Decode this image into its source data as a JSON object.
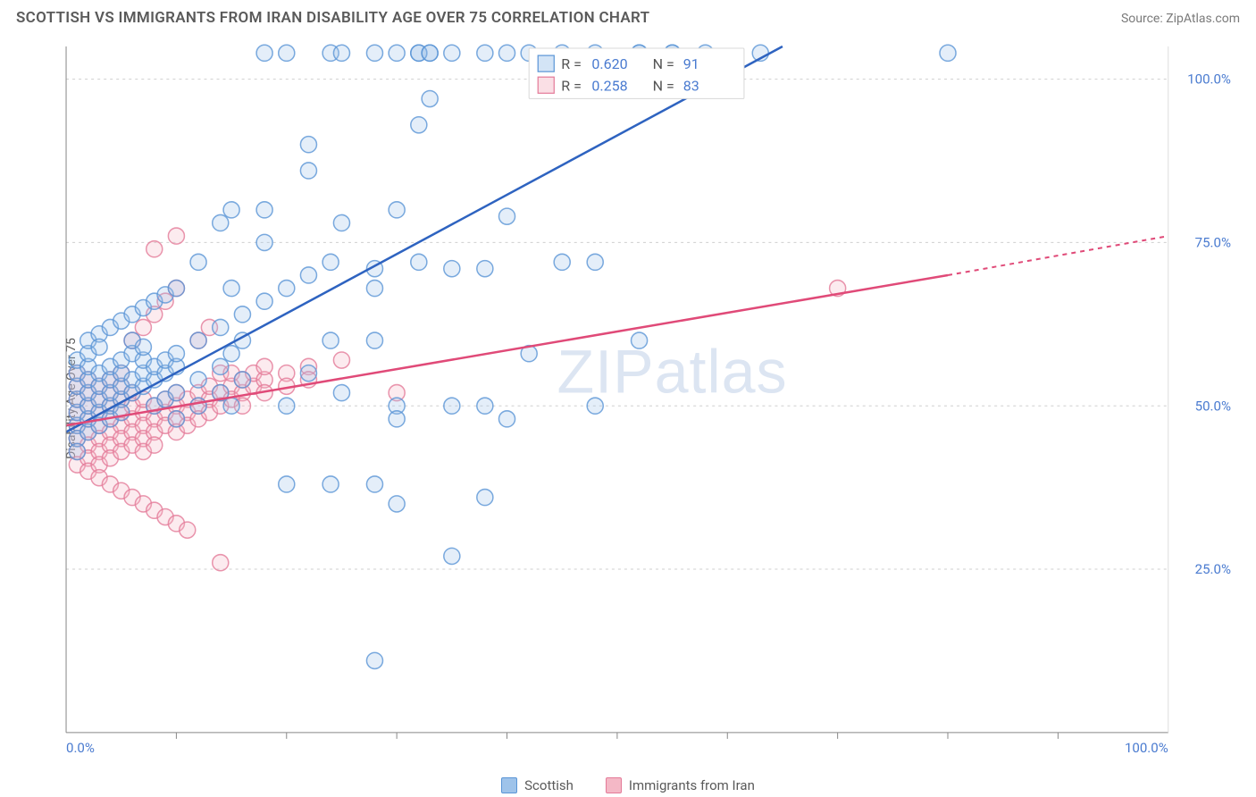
{
  "title": "SCOTTISH VS IMMIGRANTS FROM IRAN DISABILITY AGE OVER 75 CORRELATION CHART",
  "source": "Source: ZipAtlas.com",
  "y_axis_label": "Disability Age Over 75",
  "watermark": "ZIPatlas",
  "chart": {
    "type": "scatter",
    "xlim": [
      0,
      100
    ],
    "ylim": [
      0,
      105
    ],
    "y_ticks": [
      25,
      50,
      75,
      100
    ],
    "y_tick_labels": [
      "25.0%",
      "50.0%",
      "75.0%",
      "100.0%"
    ],
    "x_tick_left": "0.0%",
    "x_tick_right": "100.0%",
    "x_minor_ticks": [
      10,
      20,
      30,
      40,
      50,
      60,
      70,
      80,
      90
    ],
    "grid_color": "#cfcfcf",
    "axis_color": "#888888",
    "background_color": "#ffffff",
    "marker_radius": 9
  },
  "series_a": {
    "label": "Scottish",
    "color_fill": "#9ec3ea",
    "color_stroke": "#5a95d6",
    "trend_color": "#2e63c0",
    "R": "0.620",
    "N": "91",
    "trend": {
      "x1": 0,
      "y1": 46,
      "x2": 65,
      "y2": 105
    },
    "points": [
      [
        1,
        47
      ],
      [
        1,
        49
      ],
      [
        1,
        51
      ],
      [
        1,
        53
      ],
      [
        1,
        55
      ],
      [
        1,
        45
      ],
      [
        1,
        57
      ],
      [
        1,
        43
      ],
      [
        2,
        46
      ],
      [
        2,
        48
      ],
      [
        2,
        50
      ],
      [
        2,
        52
      ],
      [
        2,
        54
      ],
      [
        2,
        56
      ],
      [
        2,
        58
      ],
      [
        2,
        60
      ],
      [
        3,
        47
      ],
      [
        3,
        49
      ],
      [
        3,
        51
      ],
      [
        3,
        53
      ],
      [
        3,
        55
      ],
      [
        3,
        61
      ],
      [
        3,
        59
      ],
      [
        4,
        50
      ],
      [
        4,
        52
      ],
      [
        4,
        54
      ],
      [
        4,
        56
      ],
      [
        4,
        62
      ],
      [
        4,
        48
      ],
      [
        5,
        51
      ],
      [
        5,
        53
      ],
      [
        5,
        55
      ],
      [
        5,
        57
      ],
      [
        5,
        63
      ],
      [
        5,
        49
      ],
      [
        6,
        52
      ],
      [
        6,
        54
      ],
      [
        6,
        58
      ],
      [
        6,
        60
      ],
      [
        6,
        64
      ],
      [
        7,
        53
      ],
      [
        7,
        55
      ],
      [
        7,
        57
      ],
      [
        7,
        59
      ],
      [
        7,
        65
      ],
      [
        8,
        54
      ],
      [
        8,
        56
      ],
      [
        8,
        66
      ],
      [
        8,
        50
      ],
      [
        9,
        55
      ],
      [
        9,
        57
      ],
      [
        9,
        67
      ],
      [
        9,
        51
      ],
      [
        10,
        56
      ],
      [
        10,
        58
      ],
      [
        10,
        68
      ],
      [
        10,
        52
      ],
      [
        10,
        48
      ],
      [
        12,
        60
      ],
      [
        12,
        54
      ],
      [
        12,
        50
      ],
      [
        12,
        72
      ],
      [
        14,
        62
      ],
      [
        14,
        56
      ],
      [
        14,
        52
      ],
      [
        14,
        78
      ],
      [
        15,
        68
      ],
      [
        15,
        58
      ],
      [
        15,
        50
      ],
      [
        15,
        80
      ],
      [
        16,
        64
      ],
      [
        16,
        60
      ],
      [
        16,
        54
      ],
      [
        18,
        66
      ],
      [
        18,
        104
      ],
      [
        18,
        75
      ],
      [
        18,
        80
      ],
      [
        20,
        68
      ],
      [
        20,
        50
      ],
      [
        20,
        104
      ],
      [
        20,
        38
      ],
      [
        22,
        70
      ],
      [
        22,
        90
      ],
      [
        22,
        55
      ],
      [
        22,
        86
      ],
      [
        24,
        72
      ],
      [
        24,
        60
      ],
      [
        24,
        104
      ],
      [
        24,
        38
      ],
      [
        25,
        104
      ],
      [
        25,
        78
      ],
      [
        25,
        52
      ],
      [
        28,
        71
      ],
      [
        28,
        68
      ],
      [
        28,
        38
      ],
      [
        28,
        60
      ],
      [
        28,
        11
      ],
      [
        28,
        104
      ],
      [
        30,
        80
      ],
      [
        30,
        50
      ],
      [
        30,
        104
      ],
      [
        30,
        35
      ],
      [
        30,
        48
      ],
      [
        32,
        72
      ],
      [
        32,
        104
      ],
      [
        32,
        93
      ],
      [
        32,
        104
      ],
      [
        33,
        104
      ],
      [
        33,
        104
      ],
      [
        33,
        97
      ],
      [
        35,
        104
      ],
      [
        35,
        50
      ],
      [
        35,
        71
      ],
      [
        35,
        27
      ],
      [
        38,
        104
      ],
      [
        38,
        71
      ],
      [
        38,
        50
      ],
      [
        38,
        36
      ],
      [
        40,
        79
      ],
      [
        40,
        104
      ],
      [
        40,
        48
      ],
      [
        42,
        104
      ],
      [
        42,
        58
      ],
      [
        45,
        104
      ],
      [
        45,
        72
      ],
      [
        48,
        50
      ],
      [
        48,
        72
      ],
      [
        48,
        104
      ],
      [
        52,
        104
      ],
      [
        52,
        60
      ],
      [
        52,
        104
      ],
      [
        55,
        104
      ],
      [
        55,
        104
      ],
      [
        58,
        104
      ],
      [
        63,
        104
      ],
      [
        80,
        104
      ]
    ]
  },
  "series_b": {
    "label": "Immigrants from Iran",
    "color_fill": "#f4b8c6",
    "color_stroke": "#e47a98",
    "trend_color": "#e04a78",
    "R": "0.258",
    "N": "83",
    "trend_solid": {
      "x1": 0,
      "y1": 47,
      "x2": 80,
      "y2": 70
    },
    "trend_dash": {
      "x1": 80,
      "y1": 70,
      "x2": 100,
      "y2": 76
    },
    "points": [
      [
        1,
        47
      ],
      [
        1,
        49
      ],
      [
        1,
        51
      ],
      [
        1,
        45
      ],
      [
        1,
        43
      ],
      [
        1,
        53
      ],
      [
        1,
        55
      ],
      [
        1,
        41
      ],
      [
        2,
        46
      ],
      [
        2,
        48
      ],
      [
        2,
        50
      ],
      [
        2,
        44
      ],
      [
        2,
        42
      ],
      [
        2,
        52
      ],
      [
        2,
        54
      ],
      [
        2,
        40
      ],
      [
        3,
        47
      ],
      [
        3,
        49
      ],
      [
        3,
        51
      ],
      [
        3,
        45
      ],
      [
        3,
        43
      ],
      [
        3,
        53
      ],
      [
        3,
        41
      ],
      [
        3,
        39
      ],
      [
        4,
        48
      ],
      [
        4,
        50
      ],
      [
        4,
        46
      ],
      [
        4,
        44
      ],
      [
        4,
        52
      ],
      [
        4,
        42
      ],
      [
        4,
        54
      ],
      [
        4,
        38
      ],
      [
        5,
        49
      ],
      [
        5,
        47
      ],
      [
        5,
        51
      ],
      [
        5,
        45
      ],
      [
        5,
        43
      ],
      [
        5,
        53
      ],
      [
        5,
        37
      ],
      [
        5,
        55
      ],
      [
        6,
        48
      ],
      [
        6,
        50
      ],
      [
        6,
        46
      ],
      [
        6,
        44
      ],
      [
        6,
        52
      ],
      [
        6,
        36
      ],
      [
        6,
        60
      ],
      [
        7,
        49
      ],
      [
        7,
        47
      ],
      [
        7,
        51
      ],
      [
        7,
        45
      ],
      [
        7,
        43
      ],
      [
        7,
        35
      ],
      [
        7,
        62
      ],
      [
        8,
        50
      ],
      [
        8,
        48
      ],
      [
        8,
        46
      ],
      [
        8,
        44
      ],
      [
        8,
        64
      ],
      [
        8,
        34
      ],
      [
        8,
        74
      ],
      [
        9,
        49
      ],
      [
        9,
        51
      ],
      [
        9,
        47
      ],
      [
        9,
        33
      ],
      [
        9,
        66
      ],
      [
        10,
        50
      ],
      [
        10,
        48
      ],
      [
        10,
        52
      ],
      [
        10,
        46
      ],
      [
        10,
        32
      ],
      [
        10,
        68
      ],
      [
        10,
        76
      ],
      [
        11,
        51
      ],
      [
        11,
        49
      ],
      [
        11,
        47
      ],
      [
        11,
        31
      ],
      [
        12,
        52
      ],
      [
        12,
        50
      ],
      [
        12,
        48
      ],
      [
        12,
        60
      ],
      [
        13,
        51
      ],
      [
        13,
        49
      ],
      [
        13,
        62
      ],
      [
        13,
        53
      ],
      [
        14,
        52
      ],
      [
        14,
        50
      ],
      [
        14,
        55
      ],
      [
        14,
        26
      ],
      [
        15,
        53
      ],
      [
        15,
        51
      ],
      [
        15,
        55
      ],
      [
        16,
        52
      ],
      [
        16,
        54
      ],
      [
        16,
        50
      ],
      [
        17,
        53
      ],
      [
        17,
        55
      ],
      [
        18,
        54
      ],
      [
        18,
        52
      ],
      [
        18,
        56
      ],
      [
        20,
        55
      ],
      [
        20,
        53
      ],
      [
        22,
        56
      ],
      [
        22,
        54
      ],
      [
        25,
        57
      ],
      [
        30,
        52
      ],
      [
        70,
        68
      ]
    ]
  },
  "legend": {
    "stats": [
      {
        "series": "a",
        "R_label": "R =",
        "N_label": "N ="
      },
      {
        "series": "b",
        "R_label": "R =",
        "N_label": "N ="
      }
    ]
  }
}
